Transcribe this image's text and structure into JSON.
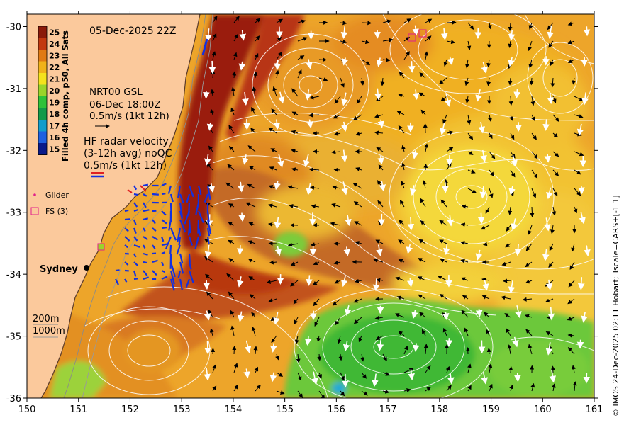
{
  "map": {
    "date_label": "05-Dec-2025 22Z",
    "colorbar_title": "Filled 4h comp, p50, All Sats",
    "colorbar_ticks": [
      "25",
      "24",
      "23",
      "22",
      "21",
      "20",
      "19",
      "18",
      "17",
      "16",
      "15"
    ],
    "colorbar_colors": [
      "#8b1a0a",
      "#c2380f",
      "#e07a14",
      "#f0b21a",
      "#f4e21c",
      "#9ad42a",
      "#2fc23a",
      "#139a4a",
      "#139ccc",
      "#1f5fe0",
      "#0a1a8a"
    ],
    "lon_range": [
      150,
      161
    ],
    "lat_range": [
      -36,
      -29.8
    ],
    "x_ticks": [
      "150",
      "151",
      "152",
      "153",
      "154",
      "155",
      "156",
      "157",
      "158",
      "159",
      "160",
      "161"
    ],
    "y_ticks": [
      "-30",
      "-31",
      "-32",
      "-33",
      "-34",
      "-35",
      "-36"
    ],
    "gsl_title": "NRT00 GSL",
    "gsl_time": "06-Dec 18:00Z",
    "gsl_scale": "0.5m/s (1kt 12h)",
    "hf_title": "HF radar velocity",
    "hf_subtitle": "(3-12h avg) noQC",
    "hf_scale": "0.5m/s (1kt 12h)",
    "legend_glider": "Glider",
    "legend_fs": "FS (3)",
    "city": "Sydney",
    "contour_200": "200m",
    "contour_1000": "1000m",
    "credit": "© IMOS 24-Dec-2025 02:11 Hobart; Tscale=CARS+[-1 1]",
    "colors": {
      "land": "#fbc99c",
      "warm_core": "#c84a10",
      "hot_current": "#9a1e0a",
      "orange_bg": "#eda52a",
      "yellow_eddy": "#f3d13a",
      "green_eddy": "#5cc73a",
      "hf_vectors": "#1230e0",
      "fs_marker": "#e0208a"
    }
  }
}
